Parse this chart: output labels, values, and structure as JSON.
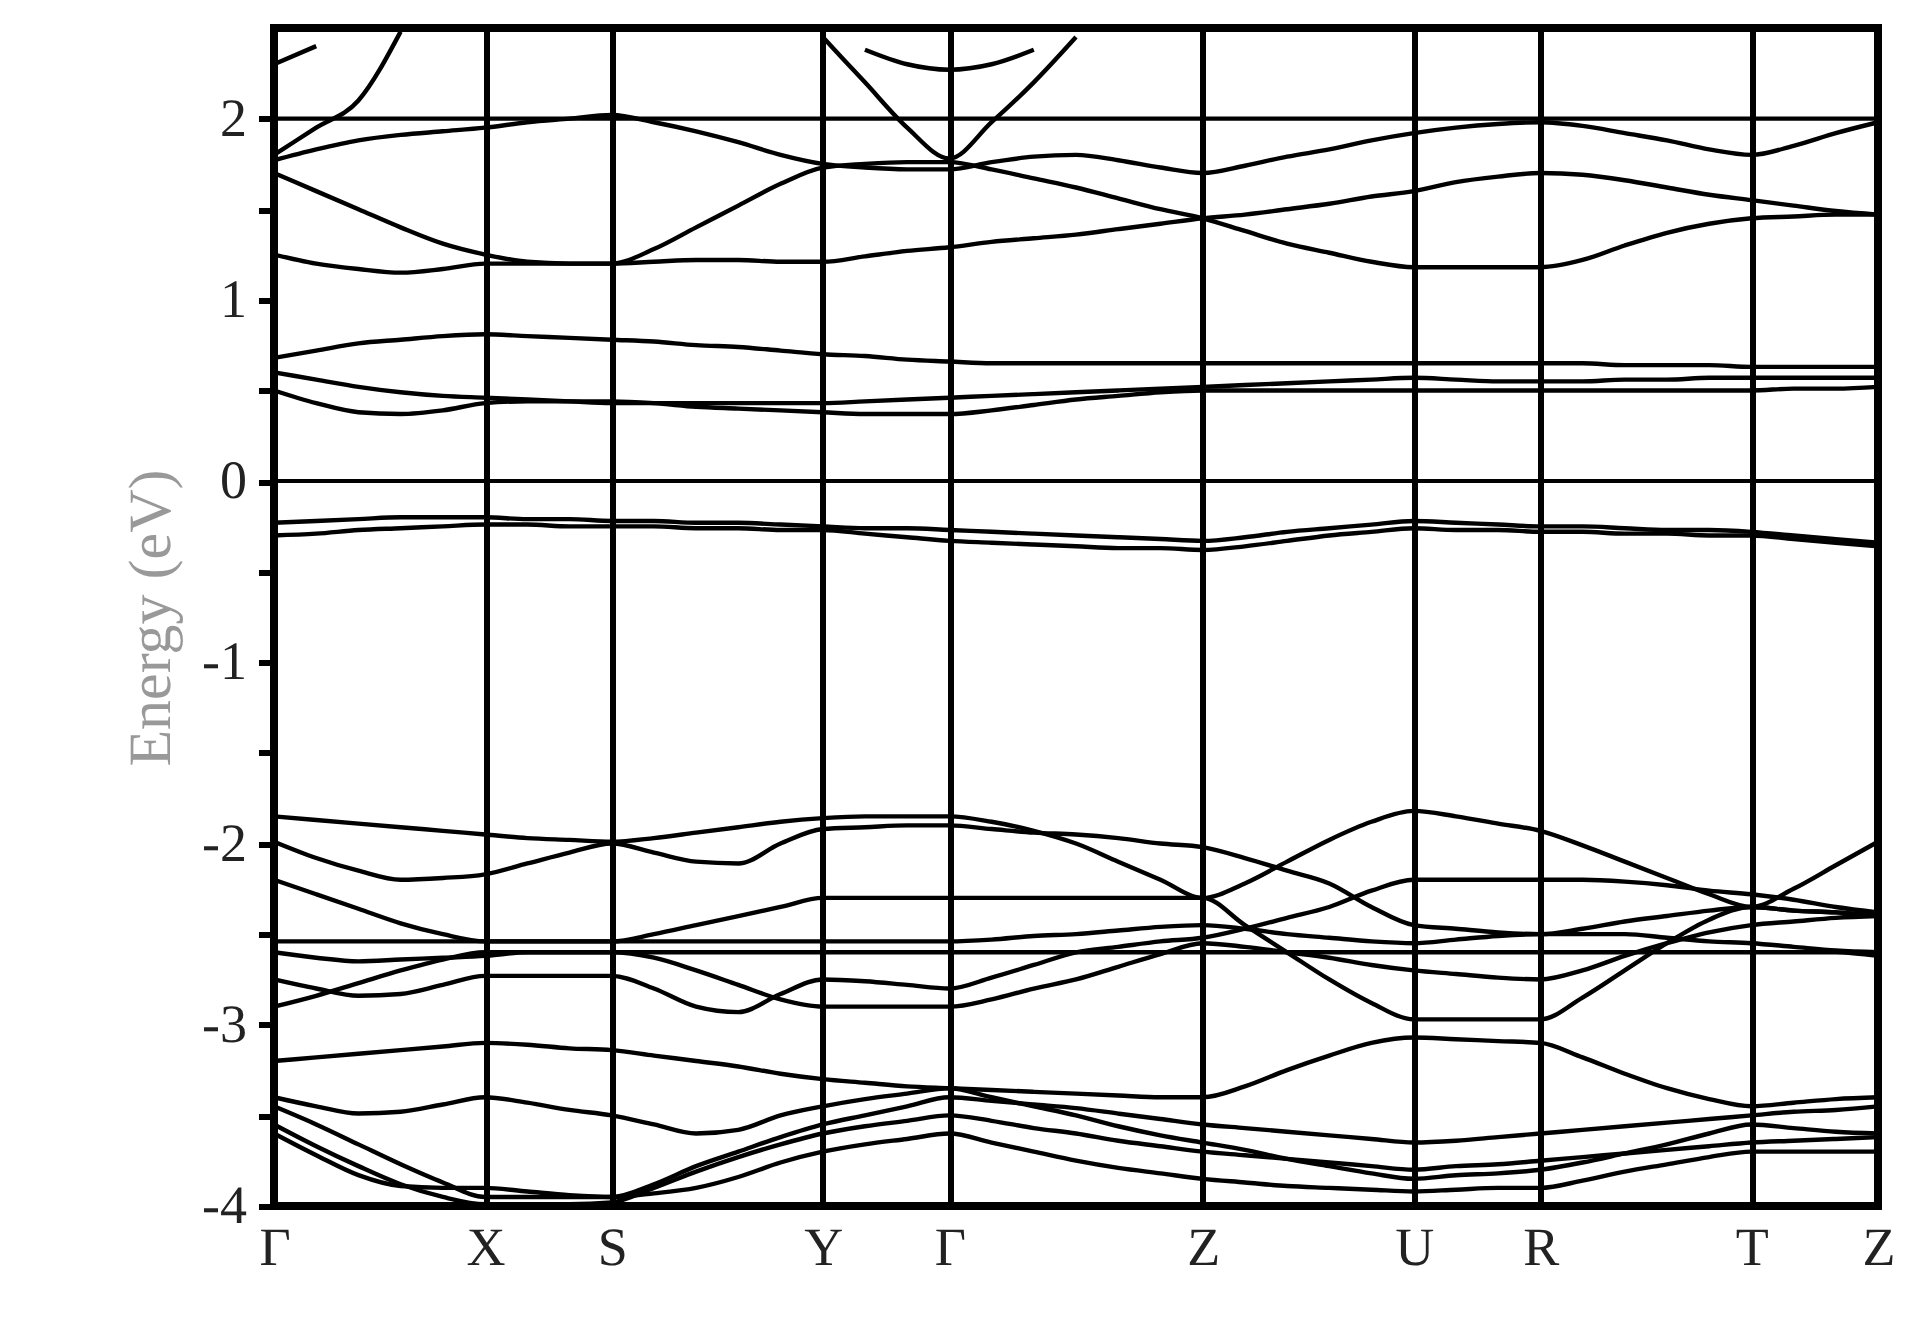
{
  "chart_data": {
    "type": "line",
    "ylabel": "Energy (eV)",
    "categories": [
      "Γ",
      null,
      null,
      null,
      null,
      "X",
      null,
      null,
      "S",
      null,
      null,
      null,
      null,
      "Y",
      null,
      null,
      "Γ",
      null,
      null,
      null,
      null,
      null,
      "Z",
      null,
      null,
      null,
      null,
      "U",
      null,
      null,
      "R",
      null,
      null,
      null,
      null,
      "T",
      null,
      null,
      "Z"
    ],
    "ylim": [
      -4,
      2.5
    ],
    "yticks": [
      -4,
      {
        "value": -3.5,
        "label": null
      },
      -3,
      {
        "value": -2.5,
        "label": null
      },
      -2,
      {
        "value": -1.5,
        "label": null
      },
      -1,
      {
        "value": -0.5,
        "label": null
      },
      0,
      {
        "value": 0.5,
        "label": null
      },
      1,
      {
        "value": 1.5,
        "label": null
      },
      2
    ],
    "grid": "x",
    "line_style": "solid",
    "marker": "none",
    "ref_lines": [
      {
        "axis": "y",
        "value": 0,
        "color": "#000000"
      }
    ],
    "series": [
      {
        "color": "#000000",
        "values": [
          2.3,
          2.4,
          null,
          null,
          null,
          null,
          null,
          null,
          null,
          null,
          null,
          null,
          null,
          null,
          null,
          null,
          null,
          null,
          null,
          null,
          null,
          null,
          null,
          null,
          null,
          null,
          null,
          null,
          null,
          null,
          null,
          null,
          null,
          null,
          null,
          null,
          null,
          null,
          null
        ]
      },
      {
        "color": "#000000",
        "values": [
          1.8,
          1.95,
          2.1,
          2.48,
          null,
          null,
          null,
          null,
          null,
          null,
          null,
          null,
          null,
          null,
          null,
          null,
          null,
          null,
          null,
          null,
          null,
          null,
          null,
          null,
          null,
          null,
          null,
          null,
          null,
          null,
          null,
          null,
          null,
          null,
          null,
          null,
          null,
          null,
          null
        ]
      },
      {
        "color": "#000000",
        "values": [
          null,
          null,
          null,
          null,
          null,
          null,
          null,
          null,
          null,
          null,
          null,
          null,
          null,
          null,
          2.38,
          2.3,
          2.27,
          2.3,
          2.38,
          null,
          null,
          null,
          null,
          null,
          null,
          null,
          null,
          null,
          null,
          null,
          null,
          null,
          null,
          null,
          null,
          null,
          null,
          null,
          null
        ]
      },
      {
        "color": "#000000",
        "values": [
          null,
          null,
          null,
          null,
          null,
          null,
          null,
          null,
          null,
          null,
          null,
          null,
          null,
          2.45,
          2.2,
          1.95,
          1.78,
          1.98,
          2.2,
          2.45,
          null,
          null,
          null,
          null,
          null,
          null,
          null,
          null,
          null,
          null,
          null,
          null,
          null,
          null,
          null,
          null,
          null,
          null,
          null
        ]
      },
      {
        "color": "#000000",
        "values": [
          2.0,
          2.0,
          2.0,
          2.0,
          2.0,
          2.0,
          2.0,
          2.0,
          2.0,
          2.0,
          2.0,
          2.0,
          2.0,
          2.0,
          2.0,
          2.0,
          2.0,
          2.0,
          2.0,
          2.0,
          2.0,
          2.0,
          2.0,
          2.0,
          2.0,
          2.0,
          2.0,
          2.0,
          2.0,
          2.0,
          2.0,
          2.0,
          2.0,
          2.0,
          2.0,
          2.0,
          2.0,
          2.0,
          2.0
        ]
      },
      {
        "color": "#000000",
        "values": [
          1.77,
          1.83,
          1.88,
          1.91,
          1.93,
          1.95,
          1.98,
          2.0,
          2.02,
          1.98,
          1.93,
          1.87,
          1.8,
          1.75,
          1.73,
          1.72,
          1.72,
          1.76,
          1.79,
          1.8,
          1.77,
          1.73,
          1.7,
          1.74,
          1.79,
          1.83,
          1.88,
          1.92,
          1.95,
          1.97,
          1.98,
          1.96,
          1.92,
          1.88,
          1.83,
          1.8,
          1.85,
          1.92,
          1.98
        ]
      },
      {
        "color": "#000000",
        "values": [
          1.7,
          1.6,
          1.5,
          1.4,
          1.31,
          1.25,
          1.21,
          1.2,
          1.2,
          1.28,
          1.4,
          1.52,
          1.64,
          1.73,
          1.75,
          1.76,
          1.76,
          1.72,
          1.67,
          1.62,
          1.56,
          1.5,
          1.45,
          1.38,
          1.31,
          1.26,
          1.21,
          1.18,
          1.18,
          1.18,
          1.18,
          1.22,
          1.3,
          1.37,
          1.42,
          1.45,
          1.46,
          1.47,
          1.47
        ]
      },
      {
        "color": "#000000",
        "values": [
          1.25,
          1.2,
          1.17,
          1.15,
          1.17,
          1.2,
          1.2,
          1.2,
          1.2,
          1.21,
          1.22,
          1.22,
          1.21,
          1.21,
          1.24,
          1.27,
          1.29,
          1.32,
          1.34,
          1.36,
          1.39,
          1.42,
          1.45,
          1.47,
          1.5,
          1.53,
          1.57,
          1.6,
          1.65,
          1.68,
          1.7,
          1.69,
          1.66,
          1.62,
          1.58,
          1.55,
          1.52,
          1.49,
          1.47
        ]
      },
      {
        "color": "#000000",
        "values": [
          0.68,
          0.72,
          0.76,
          0.78,
          0.8,
          0.81,
          0.8,
          0.79,
          0.78,
          0.77,
          0.75,
          0.74,
          0.72,
          0.7,
          0.69,
          0.67,
          0.66,
          0.65,
          0.65,
          0.65,
          0.65,
          0.65,
          0.65,
          0.65,
          0.65,
          0.65,
          0.65,
          0.65,
          0.65,
          0.65,
          0.65,
          0.65,
          0.64,
          0.64,
          0.64,
          0.63,
          0.63,
          0.63,
          0.63
        ]
      },
      {
        "color": "#000000",
        "values": [
          0.6,
          0.56,
          0.52,
          0.49,
          0.47,
          0.46,
          0.45,
          0.44,
          0.43,
          0.43,
          0.43,
          0.43,
          0.43,
          0.43,
          0.44,
          0.45,
          0.46,
          0.47,
          0.48,
          0.49,
          0.5,
          0.51,
          0.52,
          0.53,
          0.54,
          0.55,
          0.56,
          0.57,
          0.56,
          0.55,
          0.55,
          0.55,
          0.56,
          0.56,
          0.57,
          0.57,
          0.57,
          0.57,
          0.57
        ]
      },
      {
        "color": "#000000",
        "values": [
          0.5,
          0.43,
          0.38,
          0.37,
          0.39,
          0.43,
          0.44,
          0.44,
          0.44,
          0.43,
          0.41,
          0.4,
          0.39,
          0.38,
          0.37,
          0.37,
          0.37,
          0.39,
          0.42,
          0.45,
          0.47,
          0.49,
          0.5,
          0.5,
          0.5,
          0.5,
          0.5,
          0.5,
          0.5,
          0.5,
          0.5,
          0.5,
          0.5,
          0.5,
          0.5,
          0.5,
          0.51,
          0.51,
          0.52
        ]
      },
      {
        "color": "#000000",
        "values": [
          -0.23,
          -0.22,
          -0.21,
          -0.2,
          -0.2,
          -0.2,
          -0.21,
          -0.21,
          -0.22,
          -0.22,
          -0.23,
          -0.23,
          -0.24,
          -0.25,
          -0.26,
          -0.26,
          -0.27,
          -0.28,
          -0.29,
          -0.3,
          -0.31,
          -0.32,
          -0.33,
          -0.31,
          -0.28,
          -0.26,
          -0.24,
          -0.22,
          -0.23,
          -0.24,
          -0.25,
          -0.25,
          -0.26,
          -0.27,
          -0.27,
          -0.28,
          -0.3,
          -0.32,
          -0.34
        ]
      },
      {
        "color": "#000000",
        "values": [
          -0.3,
          -0.29,
          -0.27,
          -0.26,
          -0.25,
          -0.24,
          -0.24,
          -0.25,
          -0.25,
          -0.25,
          -0.26,
          -0.26,
          -0.27,
          -0.27,
          -0.29,
          -0.31,
          -0.33,
          -0.34,
          -0.35,
          -0.36,
          -0.37,
          -0.37,
          -0.38,
          -0.36,
          -0.33,
          -0.3,
          -0.28,
          -0.26,
          -0.27,
          -0.27,
          -0.28,
          -0.28,
          -0.29,
          -0.29,
          -0.3,
          -0.3,
          -0.32,
          -0.34,
          -0.36
        ]
      },
      {
        "color": "#000000",
        "values": [
          -1.85,
          -1.87,
          -1.89,
          -1.91,
          -1.93,
          -1.95,
          -1.97,
          -1.98,
          -1.99,
          -1.97,
          -1.94,
          -1.91,
          -1.88,
          -1.86,
          -1.85,
          -1.85,
          -1.85,
          -1.88,
          -1.93,
          -2.0,
          -2.1,
          -2.2,
          -2.3,
          -2.22,
          -2.1,
          -1.98,
          -1.88,
          -1.82,
          -1.85,
          -1.89,
          -1.93,
          -2.01,
          -2.1,
          -2.19,
          -2.28,
          -2.35,
          -2.25,
          -2.12,
          -1.99
        ]
      },
      {
        "color": "#000000",
        "values": [
          -1.99,
          -2.08,
          -2.15,
          -2.2,
          -2.19,
          -2.17,
          -2.11,
          -2.05,
          -2.0,
          -2.05,
          -2.1,
          -2.11,
          -2.0,
          -1.92,
          -1.91,
          -1.9,
          -1.9,
          -1.92,
          -1.94,
          -1.95,
          -1.97,
          -2.0,
          -2.02,
          -2.08,
          -2.15,
          -2.22,
          -2.35,
          -2.45,
          -2.47,
          -2.49,
          -2.5,
          -2.47,
          -2.43,
          -2.4,
          -2.37,
          -2.35,
          -2.37,
          -2.38,
          -2.4
        ]
      },
      {
        "color": "#000000",
        "values": [
          -2.2,
          -2.28,
          -2.36,
          -2.44,
          -2.5,
          -2.54,
          -2.54,
          -2.54,
          -2.54,
          -2.5,
          -2.45,
          -2.4,
          -2.35,
          -2.3,
          -2.3,
          -2.3,
          -2.3,
          -2.3,
          -2.3,
          -2.3,
          -2.3,
          -2.3,
          -2.3,
          -2.45,
          -2.6,
          -2.75,
          -2.88,
          -2.97,
          -2.97,
          -2.97,
          -2.97,
          -2.85,
          -2.7,
          -2.55,
          -2.42,
          -2.35,
          -2.37,
          -2.38,
          -2.4
        ]
      },
      {
        "color": "#000000",
        "values": [
          -2.54,
          -2.54,
          -2.54,
          -2.54,
          -2.54,
          -2.54,
          -2.54,
          -2.54,
          -2.54,
          -2.54,
          -2.54,
          -2.54,
          -2.54,
          -2.54,
          -2.54,
          -2.54,
          -2.54,
          -2.53,
          -2.51,
          -2.5,
          -2.48,
          -2.46,
          -2.45,
          -2.47,
          -2.5,
          -2.52,
          -2.54,
          -2.55,
          -2.53,
          -2.51,
          -2.5,
          -2.5,
          -2.5,
          -2.52,
          -2.54,
          -2.55,
          -2.57,
          -2.59,
          -2.6
        ]
      },
      {
        "color": "#000000",
        "values": [
          -2.6,
          -2.63,
          -2.65,
          -2.64,
          -2.63,
          -2.62,
          -2.6,
          -2.6,
          -2.6,
          -2.6,
          -2.6,
          -2.6,
          -2.6,
          -2.6,
          -2.6,
          -2.6,
          -2.6,
          -2.6,
          -2.6,
          -2.6,
          -2.6,
          -2.6,
          -2.6,
          -2.6,
          -2.6,
          -2.6,
          -2.6,
          -2.6,
          -2.6,
          -2.6,
          -2.6,
          -2.6,
          -2.6,
          -2.6,
          -2.6,
          -2.6,
          -2.6,
          -2.6,
          -2.62
        ]
      },
      {
        "color": "#000000",
        "values": [
          -2.75,
          -2.8,
          -2.84,
          -2.83,
          -2.78,
          -2.73,
          -2.73,
          -2.73,
          -2.73,
          -2.8,
          -2.9,
          -2.93,
          -2.83,
          -2.75,
          -2.76,
          -2.78,
          -2.8,
          -2.74,
          -2.67,
          -2.6,
          -2.57,
          -2.54,
          -2.52,
          -2.47,
          -2.41,
          -2.35,
          -2.26,
          -2.2,
          -2.2,
          -2.2,
          -2.2,
          -2.2,
          -2.21,
          -2.23,
          -2.26,
          -2.28,
          -2.31,
          -2.35,
          -2.38
        ]
      },
      {
        "color": "#000000",
        "values": [
          -2.9,
          -2.84,
          -2.77,
          -2.7,
          -2.64,
          -2.6,
          -2.6,
          -2.6,
          -2.6,
          -2.63,
          -2.7,
          -2.78,
          -2.86,
          -2.9,
          -2.9,
          -2.9,
          -2.9,
          -2.86,
          -2.8,
          -2.75,
          -2.68,
          -2.61,
          -2.55,
          -2.57,
          -2.6,
          -2.63,
          -2.67,
          -2.7,
          -2.72,
          -2.74,
          -2.75,
          -2.7,
          -2.62,
          -2.55,
          -2.49,
          -2.45,
          -2.43,
          -2.41,
          -2.4
        ]
      },
      {
        "color": "#000000",
        "values": [
          -3.2,
          -3.18,
          -3.16,
          -3.14,
          -3.12,
          -3.1,
          -3.11,
          -3.13,
          -3.14,
          -3.17,
          -3.2,
          -3.23,
          -3.27,
          -3.3,
          -3.32,
          -3.34,
          -3.35,
          -3.36,
          -3.37,
          -3.38,
          -3.39,
          -3.4,
          -3.4,
          -3.34,
          -3.25,
          -3.17,
          -3.1,
          -3.07,
          -3.08,
          -3.09,
          -3.1,
          -3.18,
          -3.27,
          -3.35,
          -3.41,
          -3.45,
          -3.43,
          -3.41,
          -3.4
        ]
      },
      {
        "color": "#000000",
        "values": [
          -3.4,
          -3.45,
          -3.49,
          -3.48,
          -3.44,
          -3.4,
          -3.43,
          -3.47,
          -3.5,
          -3.55,
          -3.6,
          -3.58,
          -3.5,
          -3.45,
          -3.41,
          -3.38,
          -3.35,
          -3.4,
          -3.45,
          -3.5,
          -3.56,
          -3.61,
          -3.65,
          -3.69,
          -3.74,
          -3.78,
          -3.82,
          -3.85,
          -3.83,
          -3.82,
          -3.8,
          -3.76,
          -3.71,
          -3.66,
          -3.6,
          -3.55,
          -3.57,
          -3.59,
          -3.6
        ]
      },
      {
        "color": "#000000",
        "values": [
          -3.45,
          -3.55,
          -3.66,
          -3.77,
          -3.87,
          -3.95,
          -3.95,
          -3.95,
          -3.95,
          -3.88,
          -3.78,
          -3.7,
          -3.62,
          -3.55,
          -3.5,
          -3.45,
          -3.4,
          -3.42,
          -3.44,
          -3.46,
          -3.49,
          -3.52,
          -3.55,
          -3.57,
          -3.59,
          -3.61,
          -3.63,
          -3.65,
          -3.64,
          -3.62,
          -3.6,
          -3.58,
          -3.56,
          -3.54,
          -3.52,
          -3.5,
          -3.48,
          -3.47,
          -3.45
        ]
      },
      {
        "color": "#000000",
        "values": [
          -3.55,
          -3.67,
          -3.78,
          -3.88,
          -3.95,
          -3.99,
          -3.99,
          -3.99,
          -3.98,
          -3.9,
          -3.81,
          -3.73,
          -3.66,
          -3.6,
          -3.56,
          -3.53,
          -3.5,
          -3.53,
          -3.57,
          -3.6,
          -3.64,
          -3.67,
          -3.7,
          -3.72,
          -3.74,
          -3.76,
          -3.78,
          -3.8,
          -3.78,
          -3.77,
          -3.75,
          -3.73,
          -3.71,
          -3.69,
          -3.67,
          -3.65,
          -3.64,
          -3.63,
          -3.62
        ]
      },
      {
        "color": "#000000",
        "values": [
          -3.6,
          -3.72,
          -3.83,
          -3.89,
          -3.9,
          -3.9,
          -3.92,
          -3.94,
          -3.95,
          -3.93,
          -3.9,
          -3.84,
          -3.76,
          -3.7,
          -3.66,
          -3.63,
          -3.6,
          -3.65,
          -3.7,
          -3.75,
          -3.79,
          -3.82,
          -3.85,
          -3.87,
          -3.89,
          -3.9,
          -3.91,
          -3.92,
          -3.91,
          -3.9,
          -3.9,
          -3.86,
          -3.81,
          -3.77,
          -3.73,
          -3.7,
          -3.7,
          -3.7,
          -3.7
        ]
      }
    ]
  }
}
